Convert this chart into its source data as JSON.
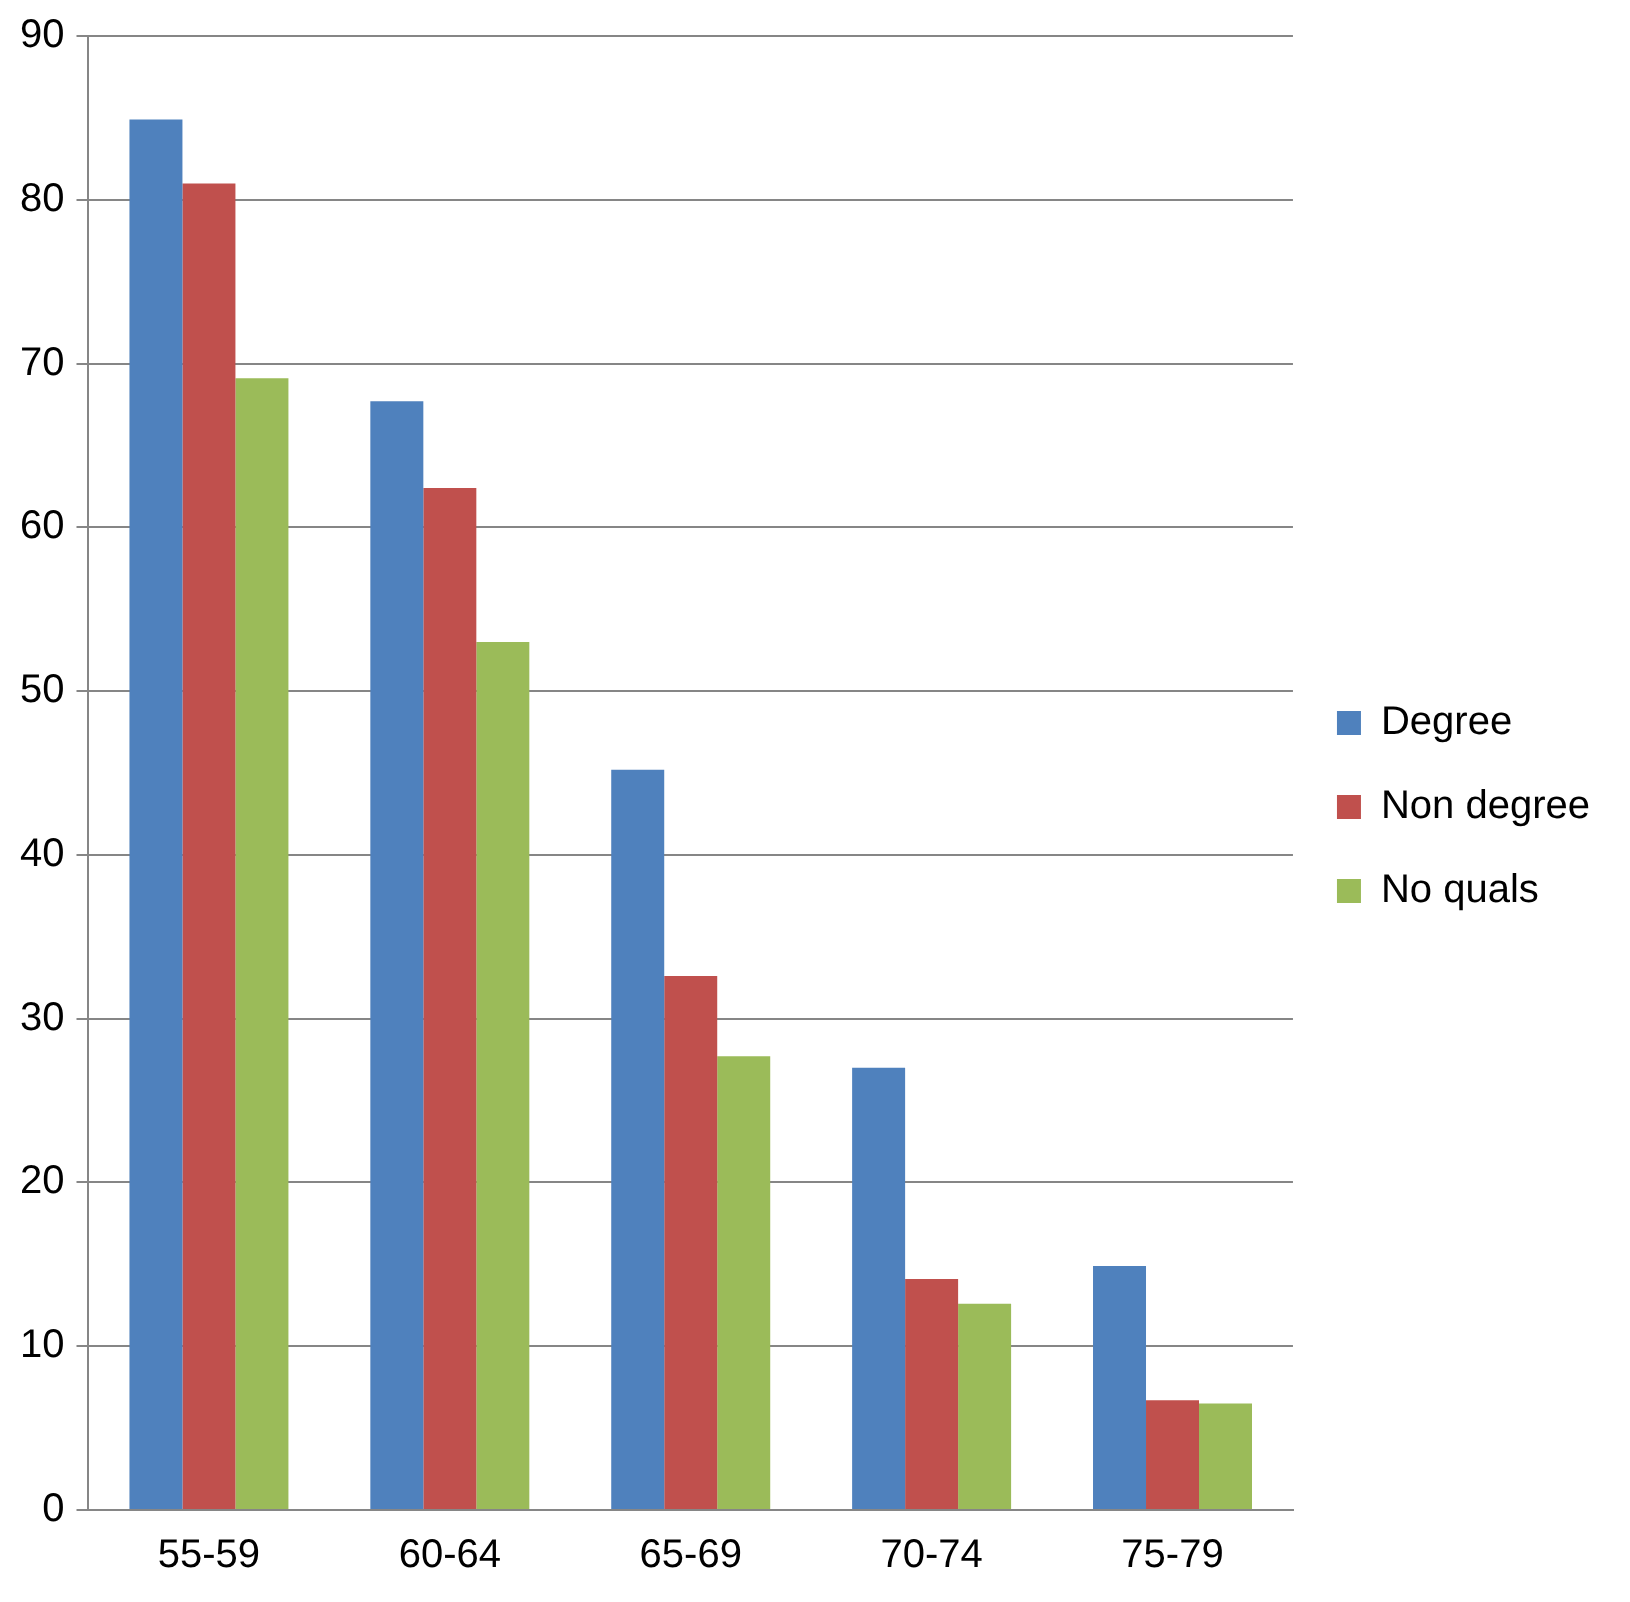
{
  "chart_data": {
    "type": "bar",
    "categories": [
      "55-59",
      "60-64",
      "65-69",
      "70-74",
      "75-79"
    ],
    "series": [
      {
        "name": "Degree",
        "color": "#4f81bd",
        "values": [
          84.9,
          67.7,
          45.2,
          27.0,
          14.9
        ]
      },
      {
        "name": "Non degree",
        "color": "#c0504d",
        "values": [
          81.0,
          62.4,
          32.6,
          14.1,
          6.7
        ]
      },
      {
        "name": "No quals",
        "color": "#9bbb59",
        "values": [
          69.1,
          53.0,
          27.7,
          12.6,
          6.5
        ]
      }
    ],
    "ylim": [
      0,
      90
    ],
    "yticks": [
      0,
      10,
      20,
      30,
      40,
      50,
      60,
      70,
      80,
      90
    ],
    "grid": "y",
    "legend": "right"
  }
}
